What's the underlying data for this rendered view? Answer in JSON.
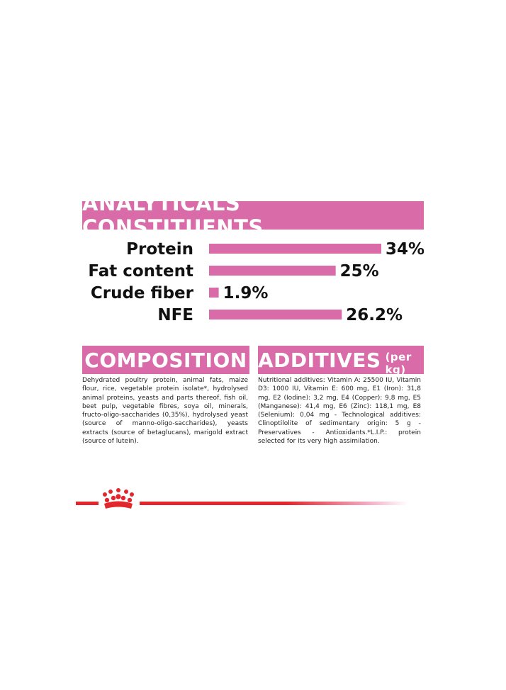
{
  "analyticals": {
    "title": "ANALYTICALS CONSTITUENTS"
  },
  "chart_data": {
    "type": "bar",
    "orientation": "horizontal",
    "categories": [
      "Protein",
      "Fat content",
      "Crude fiber",
      "NFE"
    ],
    "values": [
      34,
      25,
      1.9,
      26.2
    ],
    "value_labels": [
      "34%",
      "25%",
      "1.9%",
      "26.2%"
    ],
    "bar_color": "#d96ba8",
    "xlim": [
      0,
      34
    ]
  },
  "composition": {
    "title": "COMPOSITION",
    "text": "Dehydrated poultry protein, animal fats, maize flour, rice, vegetable protein isolate*, hydrolysed animal proteins, yeasts and parts thereof, fish oil, beet pulp, vegetable fibres, soya oil, minerals, fructo-oligo-saccharides (0,35%), hydrolysed yeast (source of manno-oligo-saccharides), yeasts extracts (source of betaglucans), marigold extract (source of lutein)."
  },
  "additives": {
    "title": "ADDITIVES",
    "unit": "(per kg)",
    "text": "Nutritional additives: Vitamin A: 25500 IU, Vitamin D3: 1000 IU, Vitamin E: 600 mg, E1 (Iron): 31,8 mg, E2 (Iodine): 3,2 mg, E4 (Copper): 9,8 mg, E5 (Manganese): 41,4 mg, E6 (Zinc): 118,1 mg, E8 (Selenium): 0,04 mg - Technological additives: Clinoptilolite of sedimentary origin: 5 g - Preservatives - Antioxidants.*L.I.P.: protein selected for its very high assimilation."
  },
  "colors": {
    "accent_pink": "#d96ba8",
    "brand_red": "#e3262c"
  },
  "footer": {
    "logo_icon": "royal-crown-icon"
  }
}
